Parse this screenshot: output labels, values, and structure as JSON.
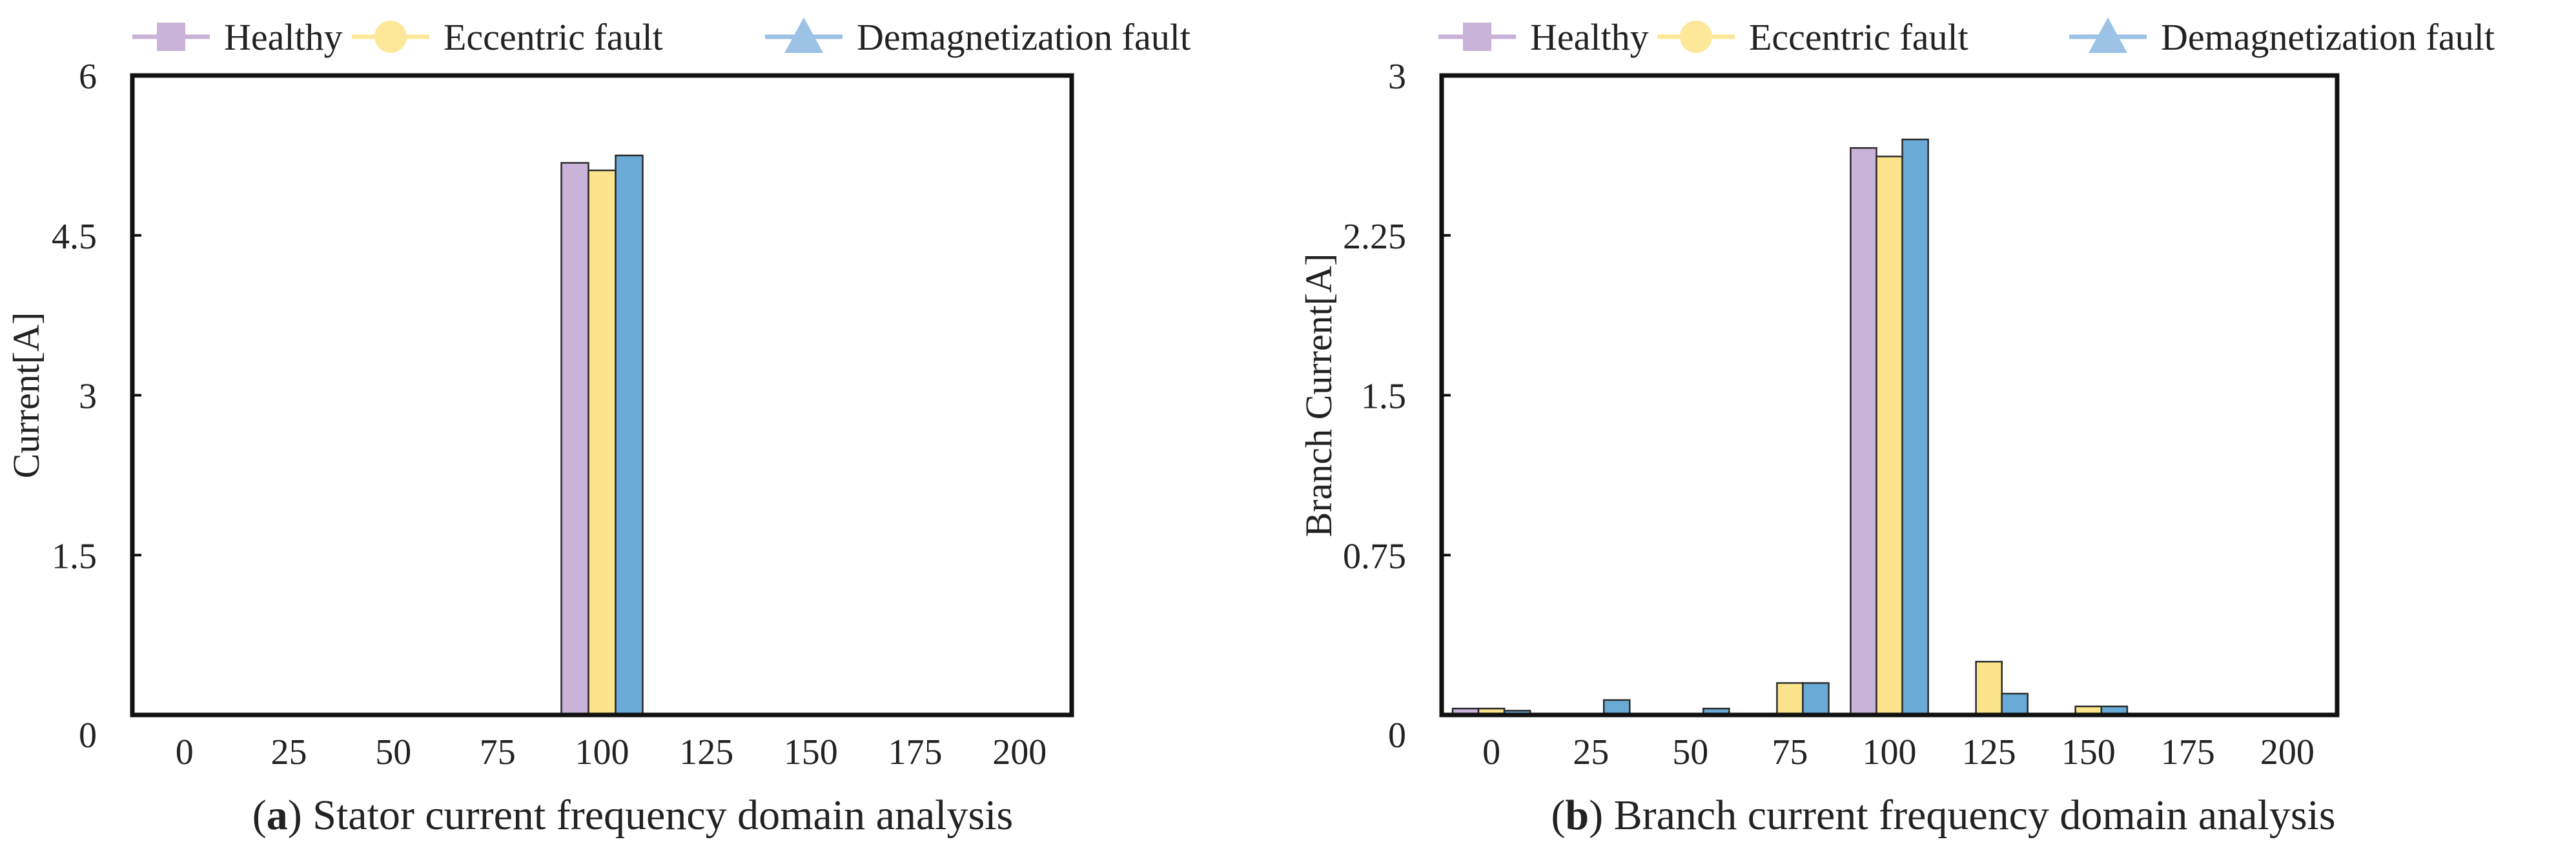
{
  "legend": [
    {
      "label": "Healthy",
      "color": "#c9b3d8",
      "marker": "square"
    },
    {
      "label": "Eccentric fault",
      "color": "#fde89a",
      "marker": "circle"
    },
    {
      "label": "Demagnetization fault",
      "color": "#9cc3e6",
      "marker": "triangle"
    }
  ],
  "colors": {
    "healthy": "#c9b3d8",
    "eccentric": "#fbe48c",
    "demag": "#6aaad6",
    "edge": "#2a2a2a"
  },
  "panels": [
    {
      "letter": "a",
      "caption_text": " Stator current frequency domain analysis"
    },
    {
      "letter": "b",
      "caption_text": " Branch current frequency domain analysis"
    }
  ],
  "chart_data": [
    {
      "type": "bar",
      "categories": [
        "0",
        "25",
        "50",
        "75",
        "100",
        "125",
        "150",
        "175",
        "200"
      ],
      "series": [
        {
          "name": "Healthy",
          "values": [
            0,
            0,
            0,
            0,
            5.18,
            0,
            0,
            0,
            0
          ]
        },
        {
          "name": "Eccentric fault",
          "values": [
            0,
            0,
            0,
            0,
            5.11,
            0,
            0,
            0,
            0
          ]
        },
        {
          "name": "Demagnetization fault",
          "values": [
            0,
            0,
            0,
            0,
            5.25,
            0,
            0,
            0,
            0
          ]
        }
      ],
      "ylabel": "Current[A]",
      "ylim": [
        0,
        6
      ],
      "yticks": [
        "0",
        "1.5",
        "3",
        "4.5",
        "6"
      ],
      "grid": false,
      "legend_position": "top"
    },
    {
      "type": "bar",
      "categories": [
        "0",
        "25",
        "50",
        "75",
        "100",
        "125",
        "150",
        "175",
        "200"
      ],
      "series": [
        {
          "name": "Healthy",
          "values": [
            0.03,
            0,
            0,
            0,
            2.66,
            0,
            0,
            0,
            0
          ]
        },
        {
          "name": "Eccentric fault",
          "values": [
            0.03,
            0,
            0,
            0.15,
            2.62,
            0.25,
            0.04,
            0,
            0
          ]
        },
        {
          "name": "Demagnetization fault",
          "values": [
            0.02,
            0.07,
            0.03,
            0.15,
            2.7,
            0.1,
            0.04,
            0,
            0
          ]
        }
      ],
      "ylabel": "Branch Current[A]",
      "ylim": [
        0,
        3
      ],
      "yticks": [
        "0",
        "0.75",
        "1.5",
        "2.25",
        "3"
      ],
      "grid": false,
      "legend_position": "top"
    }
  ]
}
